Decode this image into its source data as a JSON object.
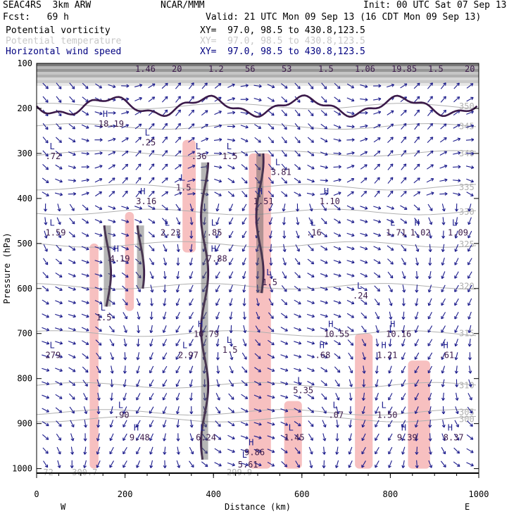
{
  "header": {
    "model": "SEAC4RS  3km ARW",
    "center": "NCAR/MMM",
    "init": "Init: 00 UTC Sat 07 Sep 13",
    "fcst": "Fcst:   69 h",
    "valid": "Valid: 21 UTC Mon 09 Sep 13 (16 CDT Mon 09 Sep 13)",
    "fields": [
      {
        "name": "Potential vorticity",
        "xy": "XY=  97.0, 98.5 to 430.8,123.5",
        "color": "#000000"
      },
      {
        "name": "Potential temperature",
        "xy": "XY=  97.0, 98.5 to 430.8,123.5",
        "color": "#c8c8c8"
      },
      {
        "name": "Horizontal wind speed",
        "xy": "XY=  97.0, 98.5 to 430.8,123.5",
        "color": "#000080"
      }
    ]
  },
  "chart_data": {
    "type": "cross-section",
    "xlabel": "Distance (km)",
    "ylabel": "Pressure (hPa)",
    "xlim": [
      0,
      1000
    ],
    "ylim": [
      1010,
      100
    ],
    "x_ticks": [
      0,
      200,
      400,
      600,
      800,
      1000
    ],
    "y_ticks": [
      100,
      200,
      300,
      400,
      500,
      600,
      700,
      800,
      900,
      1000
    ],
    "x_end_labels": {
      "left": "W",
      "right": "E"
    },
    "colors": {
      "pv_contour": "#3b1a4a",
      "theta": "#b0b0b0",
      "wind_barb": "#1c1c8c",
      "shading": "#f7c0c0",
      "tropo": "#707070"
    },
    "theta_isentropes": [
      {
        "label": "300",
        "level": 890
      },
      {
        "label": "305",
        "level": 875
      },
      {
        "label": "310",
        "level": 815
      },
      {
        "label": "315",
        "level": 700
      },
      {
        "label": "320",
        "level": 595
      },
      {
        "label": "325",
        "level": 502
      },
      {
        "label": "330",
        "level": 430
      },
      {
        "label": "335",
        "level": 375
      },
      {
        "label": "340",
        "level": 300
      },
      {
        "label": "345",
        "level": 240
      },
      {
        "label": "350",
        "level": 195
      }
    ],
    "extrema_labels": [
      {
        "kind": "H",
        "value": "18.19",
        "x": 140,
        "p": 228
      },
      {
        "kind": "L",
        "value": ".72",
        "x": 20,
        "p": 300
      },
      {
        "kind": "L",
        "value": ".25",
        "x": 235,
        "p": 270
      },
      {
        "kind": "L",
        "value": ".36",
        "x": 350,
        "p": 300
      },
      {
        "kind": "L",
        "value": "1.5",
        "x": 420,
        "p": 300
      },
      {
        "kind": "L",
        "value": "1.5",
        "x": 315,
        "p": 370
      },
      {
        "kind": "H",
        "value": "3.16",
        "x": 225,
        "p": 400
      },
      {
        "kind": "H",
        "value": "1.51",
        "x": 490,
        "p": 400
      },
      {
        "kind": "L",
        "value": "3.81",
        "x": 530,
        "p": 335
      },
      {
        "kind": "H",
        "value": "1.10",
        "x": 640,
        "p": 400
      },
      {
        "kind": "L",
        "value": "1.59",
        "x": 20,
        "p": 470
      },
      {
        "kind": "L",
        "value": "2.23",
        "x": 280,
        "p": 470
      },
      {
        "kind": "L",
        "value": ".85",
        "x": 385,
        "p": 470
      },
      {
        "kind": "L",
        "value": ".16",
        "x": 610,
        "p": 470
      },
      {
        "kind": "L",
        "value": "1.71",
        "x": 790,
        "p": 470
      },
      {
        "kind": "H",
        "value": "1.02",
        "x": 845,
        "p": 470
      },
      {
        "kind": "L",
        "value": "1.09",
        "x": 930,
        "p": 470
      },
      {
        "kind": "H",
        "value": "4.19",
        "x": 165,
        "p": 528
      },
      {
        "kind": "H",
        "value": "7.88",
        "x": 385,
        "p": 528
      },
      {
        "kind": "L",
        "value": "1.5",
        "x": 510,
        "p": 580
      },
      {
        "kind": "L",
        "value": ".24",
        "x": 715,
        "p": 610
      },
      {
        "kind": "L",
        "value": "1.5",
        "x": 135,
        "p": 658
      },
      {
        "kind": "H",
        "value": "10.79",
        "x": 355,
        "p": 695
      },
      {
        "kind": "H",
        "value": "10.55",
        "x": 650,
        "p": 695
      },
      {
        "kind": "H",
        "value": "10.16",
        "x": 790,
        "p": 695
      },
      {
        "kind": "L",
        "value": "279",
        "x": 20,
        "p": 742
      },
      {
        "kind": "L",
        "value": "2.97",
        "x": 320,
        "p": 742
      },
      {
        "kind": "L",
        "value": "1.5",
        "x": 420,
        "p": 730
      },
      {
        "kind": "H",
        "value": ".68",
        "x": 630,
        "p": 742
      },
      {
        "kind": "H",
        "value": "1.21",
        "x": 770,
        "p": 742
      },
      {
        "kind": "H",
        "value": ".61",
        "x": 910,
        "p": 742
      },
      {
        "kind": "L",
        "value": "5.35",
        "x": 580,
        "p": 820
      },
      {
        "kind": "L",
        "value": ".90",
        "x": 175,
        "p": 875
      },
      {
        "kind": "L",
        "value": ".07",
        "x": 660,
        "p": 875
      },
      {
        "kind": "L",
        "value": "1.50",
        "x": 770,
        "p": 875
      },
      {
        "kind": "H",
        "value": "9.48",
        "x": 210,
        "p": 925
      },
      {
        "kind": "L",
        "value": "6.24",
        "x": 360,
        "p": 925
      },
      {
        "kind": "L",
        "value": "1.45",
        "x": 560,
        "p": 925
      },
      {
        "kind": "H",
        "value": "9.39",
        "x": 815,
        "p": 925
      },
      {
        "kind": "H",
        "value": "8.37",
        "x": 920,
        "p": 925
      },
      {
        "kind": "H",
        "value": "9.86",
        "x": 470,
        "p": 958
      },
      {
        "kind": "L",
        "value": "5.61",
        "x": 455,
        "p": 985
      }
    ],
    "bottom_values": [
      {
        "label": "72",
        "x": 15
      },
      {
        "label": "300.7",
        "x": 80
      },
      {
        "label": "299.9",
        "x": 430
      }
    ],
    "top_values": [
      "1.46",
      "20",
      "1.2",
      "56",
      "53",
      "1.5",
      "1.06",
      "19.85",
      "1.5",
      "20"
    ],
    "wind_speed_regions": [
      {
        "x0": 200,
        "x1": 220,
        "p0": 430,
        "p1": 650
      },
      {
        "x0": 120,
        "x1": 140,
        "p0": 500,
        "p1": 1000
      },
      {
        "x0": 330,
        "x1": 360,
        "p0": 270,
        "p1": 520
      },
      {
        "x0": 480,
        "x1": 530,
        "p0": 300,
        "p1": 1000
      },
      {
        "x0": 720,
        "x1": 760,
        "p0": 700,
        "p1": 1000
      },
      {
        "x0": 840,
        "x1": 890,
        "p0": 760,
        "p1": 1000
      },
      {
        "x0": 560,
        "x1": 600,
        "p0": 850,
        "p1": 1000
      }
    ]
  }
}
